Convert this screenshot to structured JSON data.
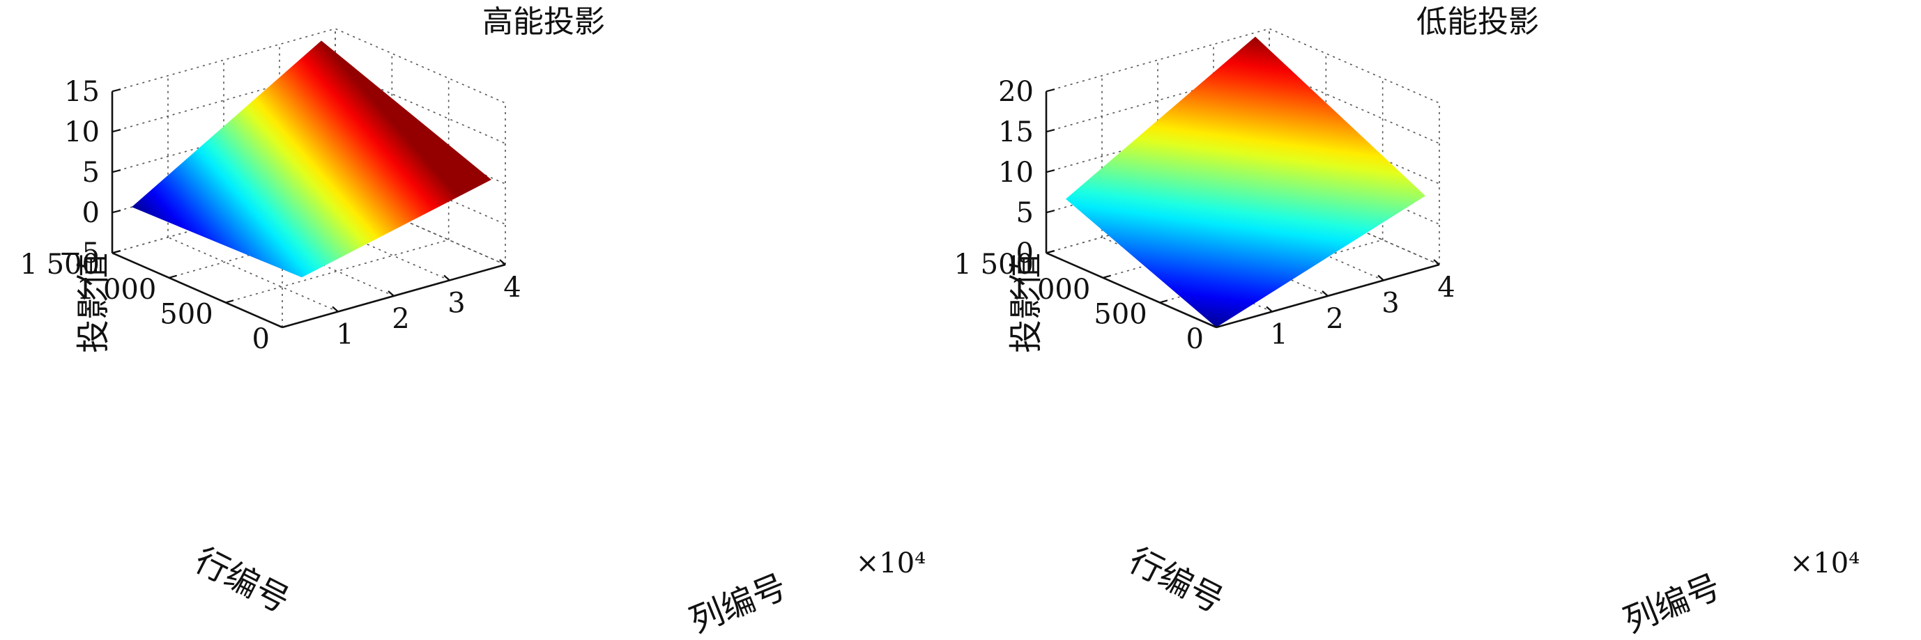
{
  "chart_data": [
    {
      "type": "surface3d",
      "title": "高能投影",
      "xlabel": "列编号",
      "ylabel": "行编号",
      "zlabel": "投影值",
      "x_exponent_label": "×10⁴",
      "xlim": [
        0,
        4
      ],
      "ylim": [
        0,
        1500
      ],
      "zlim": [
        -5,
        15
      ],
      "x_ticks": [
        1,
        2,
        3,
        4
      ],
      "x_tick_labels": [
        "1",
        "2",
        "3",
        "4"
      ],
      "y_ticks": [
        0,
        500,
        1000,
        1500
      ],
      "y_tick_labels": [
        "0",
        "500",
        "1 000",
        "1 500"
      ],
      "z_ticks": [
        -5,
        0,
        5,
        10,
        15
      ],
      "z_tick_labels": [
        "−5",
        "0",
        "5",
        "10",
        "15"
      ],
      "surface_corners": [
        {
          "x": 0.35,
          "y": 0,
          "z": 0.5
        },
        {
          "x": 3.75,
          "y": 0,
          "z": 6
        },
        {
          "x": 3.75,
          "y": 1500,
          "z": 14
        },
        {
          "x": 0.35,
          "y": 1500,
          "z": 0
        }
      ],
      "grid": true,
      "colormap": "jet"
    },
    {
      "type": "surface3d",
      "title": "低能投影",
      "xlabel": "列编号",
      "ylabel": "行编号",
      "zlabel": "投影值",
      "x_exponent_label": "×10⁴",
      "xlim": [
        0,
        4
      ],
      "ylim": [
        0,
        1500
      ],
      "zlim": [
        0,
        20
      ],
      "x_ticks": [
        1,
        2,
        3,
        4
      ],
      "x_tick_labels": [
        "1",
        "2",
        "3",
        "4"
      ],
      "y_ticks": [
        0,
        500,
        1000,
        1500
      ],
      "y_tick_labels": [
        "0",
        "500",
        "1 000",
        "1 500"
      ],
      "z_ticks": [
        0,
        5,
        10,
        15,
        20
      ],
      "z_tick_labels": [
        "0",
        "5",
        "10",
        "15",
        "20"
      ],
      "surface_corners": [
        {
          "x": 0,
          "y": 0,
          "z": 0
        },
        {
          "x": 3.75,
          "y": 0,
          "z": 9
        },
        {
          "x": 3.75,
          "y": 1500,
          "z": 19.5
        },
        {
          "x": 0.35,
          "y": 1500,
          "z": 6
        }
      ],
      "grid": true,
      "colormap": "jet"
    }
  ]
}
